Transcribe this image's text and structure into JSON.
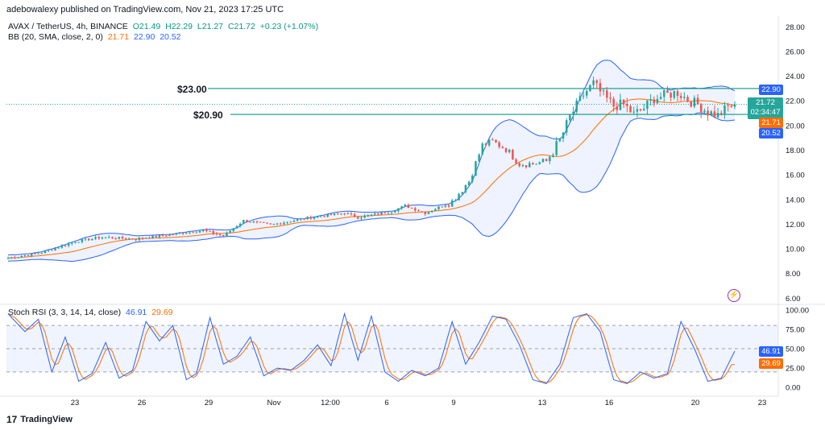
{
  "header": {
    "publisher": "adebowalexy published on TradingView.com, Nov 21, 2023 17:25 UTC",
    "symbol_line": "AVAX / TetherUS, 4h, BINANCE",
    "ohlc": {
      "o": "O21.49",
      "h": "H22.29",
      "l": "L21.27",
      "c": "C21.72",
      "chg": "+0.23 (+1.07%)"
    },
    "bb_label": "BB (20, SMA, close, 2, 0)",
    "bb_values": [
      "21.71",
      "22.90",
      "20.52"
    ]
  },
  "stoch": {
    "label": "Stoch RSI (3, 3, 14, 14, close)",
    "k": "46.91",
    "d": "29.69"
  },
  "annotations": {
    "level_high": "$23.00",
    "level_low": "$20.90"
  },
  "price_tags": {
    "upper": "22.90",
    "last": "21.72",
    "countdown": "02:34:47",
    "basis": "21.71",
    "lower": "20.52",
    "stoch_k": "46.91",
    "stoch_d": "29.69"
  },
  "footer": {
    "brand": "TradingView"
  },
  "colors": {
    "up": "#26a69a",
    "down": "#ef5350",
    "basis": "#ff6d00",
    "band": "#2962ff",
    "level": "#089981",
    "stoch_k": "#2962ff",
    "stoch_d": "#ff6d00"
  },
  "chart_data": {
    "type": "candlestick",
    "price_axis": {
      "ticks": [
        "28.00",
        "26.00",
        "24.00",
        "22.00",
        "20.00",
        "18.00",
        "16.00",
        "14.00",
        "12.00",
        "10.00",
        "8.00",
        "6.00"
      ],
      "range": [
        5.5,
        29.0
      ]
    },
    "stoch_axis": {
      "ticks": [
        "100.00",
        "75.00",
        "50.00",
        "25.00",
        "0.00"
      ],
      "range": [
        -5,
        105
      ],
      "bands": [
        80,
        50,
        20
      ]
    },
    "x_ticks": [
      "23",
      "26",
      "29",
      "Nov",
      "12:00",
      "6",
      "9",
      "13",
      "16",
      "20",
      "23"
    ],
    "levels": [
      23.0,
      20.9
    ],
    "keypoints": [
      [
        0,
        9.25
      ],
      [
        10,
        9.7
      ],
      [
        20,
        10.6
      ],
      [
        28,
        10.95
      ],
      [
        38,
        10.8
      ],
      [
        48,
        11.15
      ],
      [
        58,
        11.5
      ],
      [
        64,
        11.05
      ],
      [
        70,
        12.3
      ],
      [
        78,
        11.95
      ],
      [
        90,
        12.55
      ],
      [
        100,
        12.9
      ],
      [
        104,
        12.55
      ],
      [
        114,
        13.05
      ],
      [
        118,
        13.5
      ],
      [
        124,
        12.9
      ],
      [
        132,
        13.85
      ],
      [
        137,
        15.5
      ],
      [
        141,
        18.4
      ],
      [
        144,
        18.7
      ],
      [
        148,
        18.1
      ],
      [
        152,
        16.9
      ],
      [
        156,
        16.9
      ],
      [
        160,
        17.1
      ],
      [
        164,
        18.8
      ],
      [
        167,
        20.7
      ],
      [
        171,
        22.5
      ],
      [
        174,
        23.4
      ],
      [
        177,
        22.4
      ],
      [
        180,
        21.6
      ],
      [
        183,
        21.7
      ],
      [
        186,
        20.9
      ],
      [
        189,
        21.4
      ],
      [
        192,
        22.2
      ],
      [
        196,
        22.5
      ],
      [
        199,
        22.7
      ],
      [
        202,
        22.1
      ],
      [
        205,
        21.7
      ],
      [
        208,
        21.1
      ],
      [
        211,
        20.8
      ],
      [
        214,
        21.5
      ],
      [
        216,
        21.72
      ]
    ],
    "stoch_keypoints": [
      [
        0,
        95
      ],
      [
        5,
        72
      ],
      [
        9,
        88
      ],
      [
        13,
        20
      ],
      [
        17,
        65
      ],
      [
        21,
        8
      ],
      [
        25,
        18
      ],
      [
        29,
        58
      ],
      [
        33,
        12
      ],
      [
        37,
        22
      ],
      [
        41,
        85
      ],
      [
        45,
        60
      ],
      [
        49,
        80
      ],
      [
        53,
        10
      ],
      [
        56,
        18
      ],
      [
        60,
        90
      ],
      [
        64,
        30
      ],
      [
        68,
        40
      ],
      [
        72,
        65
      ],
      [
        76,
        15
      ],
      [
        80,
        25
      ],
      [
        84,
        22
      ],
      [
        88,
        35
      ],
      [
        92,
        55
      ],
      [
        96,
        28
      ],
      [
        100,
        95
      ],
      [
        104,
        35
      ],
      [
        108,
        92
      ],
      [
        112,
        20
      ],
      [
        116,
        8
      ],
      [
        120,
        22
      ],
      [
        124,
        15
      ],
      [
        128,
        25
      ],
      [
        132,
        85
      ],
      [
        136,
        30
      ],
      [
        140,
        58
      ],
      [
        144,
        92
      ],
      [
        148,
        88
      ],
      [
        152,
        55
      ],
      [
        156,
        10
      ],
      [
        160,
        5
      ],
      [
        164,
        30
      ],
      [
        168,
        90
      ],
      [
        172,
        95
      ],
      [
        176,
        72
      ],
      [
        180,
        10
      ],
      [
        184,
        5
      ],
      [
        188,
        20
      ],
      [
        192,
        12
      ],
      [
        196,
        18
      ],
      [
        200,
        85
      ],
      [
        204,
        50
      ],
      [
        208,
        8
      ],
      [
        212,
        12
      ],
      [
        216,
        46.91
      ]
    ],
    "bars": 217
  }
}
